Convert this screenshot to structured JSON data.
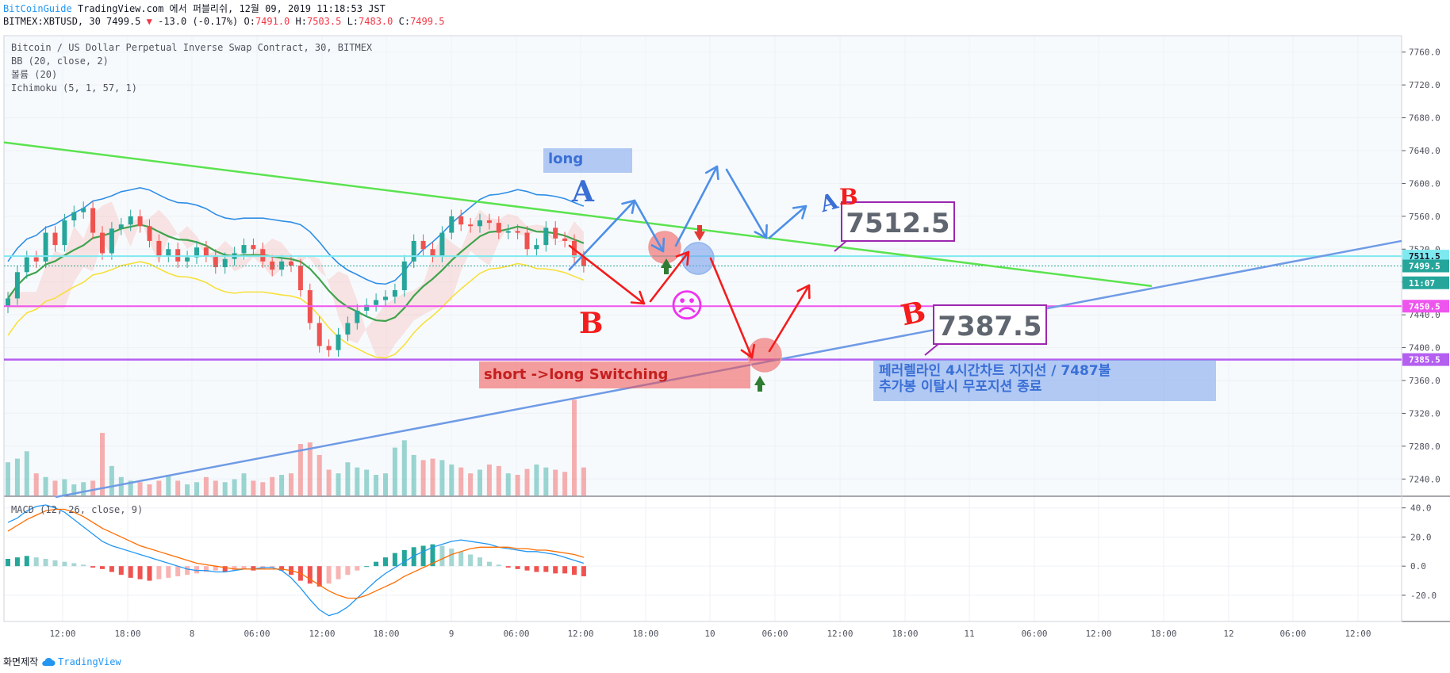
{
  "header": {
    "publisher": "BitCoinGuide",
    "published_text": "TradingView.com 에서 퍼블리쉬, 12월 09, 2019 11:18:53 JST",
    "symbol_line": "BITMEX:XBTUSD, 30 7499.5",
    "change_text": "-13.0 (-0.17%)",
    "o_label": "O:",
    "o_value": "7491.0",
    "h_label": "H:",
    "h_value": "7503.5",
    "l_label": "L:",
    "l_value": "7483.0",
    "c_label": "C:",
    "c_value": "7499.5"
  },
  "legend": {
    "title": "Bitcoin / US Dollar Perpetual Inverse Swap Contract, 30, BITMEX",
    "bb": "BB (20, close, 2)",
    "volume": "볼륨 (20)",
    "ichimoku": "Ichimoku (5, 1, 57, 1)",
    "macd": "MACD (12, 26, close, 9)"
  },
  "footer": {
    "capture_text": "화면제작",
    "brand": "TradingView"
  },
  "colors": {
    "bull": "#26a69a",
    "bear": "#ef5350",
    "green_trend": "#5be34f",
    "blue_trend": "#6f9be6",
    "cyan_line": "#7fe9f0",
    "magenta_line": "#ee55ee",
    "purple_line": "#b45ff0",
    "bb_line": "#2f8ee5",
    "ma_line": "#3fa34d",
    "yellow_line": "#f7e03b",
    "arrow_blue": "#4d8fe6",
    "arrow_red": "#f41c1c",
    "grid": "#eef1f6"
  },
  "chart_data": {
    "type": "candlestick",
    "symbol": "BITMEX:XBTUSD",
    "timeframe": "30",
    "price_axis": {
      "ylim": [
        7220,
        7780
      ],
      "ticks": [
        "7760.0",
        "7720.0",
        "7680.0",
        "7640.0",
        "7600.0",
        "7560.0",
        "7520.0",
        "7480.0",
        "7440.0",
        "7400.0",
        "7360.0",
        "7320.0",
        "7280.0",
        "7240.0"
      ]
    },
    "macd_axis": {
      "ylim": [
        -38,
        48
      ],
      "ticks": [
        "40.0",
        "20.0",
        "0.0",
        "-20.0"
      ]
    },
    "time_axis": {
      "labels": [
        "12:00",
        "18:00",
        "8",
        "06:00",
        "12:00",
        "18:00",
        "9",
        "06:00",
        "12:00",
        "18:00",
        "10",
        "06:00",
        "12:00",
        "18:00",
        "11",
        "06:00",
        "12:00",
        "18:00",
        "12",
        "06:00",
        "12:00"
      ]
    },
    "price_markers": [
      {
        "label": "7511.5",
        "value": 7511.5,
        "color": "#7fe9f0",
        "text_color": "#131722"
      },
      {
        "label": "7499.5",
        "value": 7499.5,
        "color": "#26a69a",
        "text_color": "#ffffff"
      },
      {
        "label": "11:07",
        "value": 7479,
        "color": "#26a69a",
        "text_color": "#ffffff"
      },
      {
        "label": "7450.5",
        "value": 7450.5,
        "color": "#ee55ee",
        "text_color": "#ffffff"
      },
      {
        "label": "7385.5",
        "value": 7385.5,
        "color": "#b45ff0",
        "text_color": "#ffffff"
      }
    ],
    "series": [
      {
        "name": "close",
        "values": [
          7460,
          7492,
          7510,
          7505,
          7540,
          7525,
          7555,
          7565,
          7570,
          7540,
          7515,
          7545,
          7550,
          7560,
          7548,
          7530,
          7512,
          7520,
          7505,
          7510,
          7522,
          7512,
          7498,
          7508,
          7515,
          7525,
          7520,
          7505,
          7495,
          7505,
          7500,
          7470,
          7430,
          7402,
          7397,
          7416,
          7430,
          7445,
          7452,
          7458,
          7462,
          7470,
          7505,
          7530,
          7520,
          7512,
          7540,
          7560,
          7550,
          7548,
          7555,
          7552,
          7540,
          7542,
          7540,
          7520,
          7525,
          7546,
          7533,
          7530,
          7510,
          7499.5
        ]
      },
      {
        "name": "volume",
        "values": [
          45,
          50,
          60,
          30,
          25,
          20,
          22,
          15,
          18,
          20,
          85,
          40,
          25,
          20,
          18,
          15,
          20,
          28,
          20,
          15,
          18,
          25,
          20,
          18,
          22,
          30,
          20,
          18,
          25,
          28,
          30,
          70,
          72,
          55,
          35,
          30,
          45,
          38,
          35,
          28,
          30,
          65,
          75,
          55,
          48,
          50,
          48,
          42,
          38,
          30,
          35,
          42,
          40,
          30,
          28,
          36,
          42,
          38,
          35,
          32,
          130,
          38
        ]
      },
      {
        "name": "macd_histogram",
        "values": [
          5,
          6,
          7,
          6,
          5,
          4,
          3,
          2,
          1,
          -1,
          -2,
          -4,
          -6,
          -8,
          -9,
          -10,
          -9,
          -8,
          -7,
          -6,
          -5,
          -4,
          -3,
          -4,
          -3,
          -2,
          -3,
          -2,
          -1,
          -3,
          -6,
          -10,
          -12,
          -14,
          -12,
          -9,
          -6,
          -3,
          0,
          3,
          6,
          9,
          11,
          13,
          14,
          15,
          14,
          12,
          10,
          8,
          6,
          3,
          1,
          -1,
          -2,
          -3,
          -4,
          -4,
          -5,
          -5,
          -6,
          -7
        ]
      },
      {
        "name": "macd_line",
        "values": [
          30,
          33,
          38,
          41,
          42,
          40,
          37,
          32,
          27,
          22,
          17,
          14,
          12,
          10,
          8,
          6,
          4,
          2,
          0,
          -2,
          -3,
          -3,
          -4,
          -4,
          -3,
          -2,
          -2,
          -1,
          -1,
          -3,
          -8,
          -15,
          -23,
          -30,
          -34,
          -32,
          -28,
          -22,
          -16,
          -10,
          -5,
          -1,
          3,
          7,
          10,
          13,
          15,
          17,
          18,
          17,
          16,
          15,
          13,
          12,
          11,
          10,
          10,
          9,
          8,
          6,
          4,
          2
        ]
      },
      {
        "name": "signal_line",
        "values": [
          24,
          28,
          32,
          35,
          38,
          39,
          39,
          37,
          34,
          30,
          26,
          23,
          20,
          17,
          14,
          12,
          10,
          8,
          6,
          4,
          2,
          1,
          0,
          -1,
          -2,
          -2,
          -2,
          -2,
          -2,
          -2,
          -3,
          -5,
          -9,
          -13,
          -17,
          -20,
          -22,
          -22,
          -20,
          -17,
          -14,
          -11,
          -7,
          -4,
          -1,
          2,
          5,
          8,
          10,
          12,
          13,
          13,
          13,
          13,
          12,
          12,
          11,
          11,
          10,
          9,
          8,
          6
        ]
      }
    ],
    "annotations": [
      {
        "label": "long",
        "kind": "text-box"
      },
      {
        "label": "short ->long Switching",
        "kind": "text-box"
      },
      {
        "label": "7512.5",
        "kind": "callout"
      },
      {
        "label": "7387.5",
        "kind": "callout"
      },
      {
        "label": "페러렐라인 4시간차트 지지선 / 7487불",
        "kind": "note"
      },
      {
        "label": "추가봉 이탈시 무포지션 종료",
        "kind": "note"
      },
      {
        "label": "A",
        "kind": "letter",
        "color": "#3a6fd6"
      },
      {
        "label": "A",
        "kind": "letter",
        "color": "#3a6fd6"
      },
      {
        "label": "B",
        "kind": "letter",
        "color": "#f41c1c"
      },
      {
        "label": "B",
        "kind": "letter",
        "color": "#f41c1c"
      },
      {
        "label": "B",
        "kind": "letter",
        "color": "#f41c1c"
      },
      {
        "label": "☹",
        "kind": "emoji",
        "color": "#ee33ee"
      }
    ]
  }
}
